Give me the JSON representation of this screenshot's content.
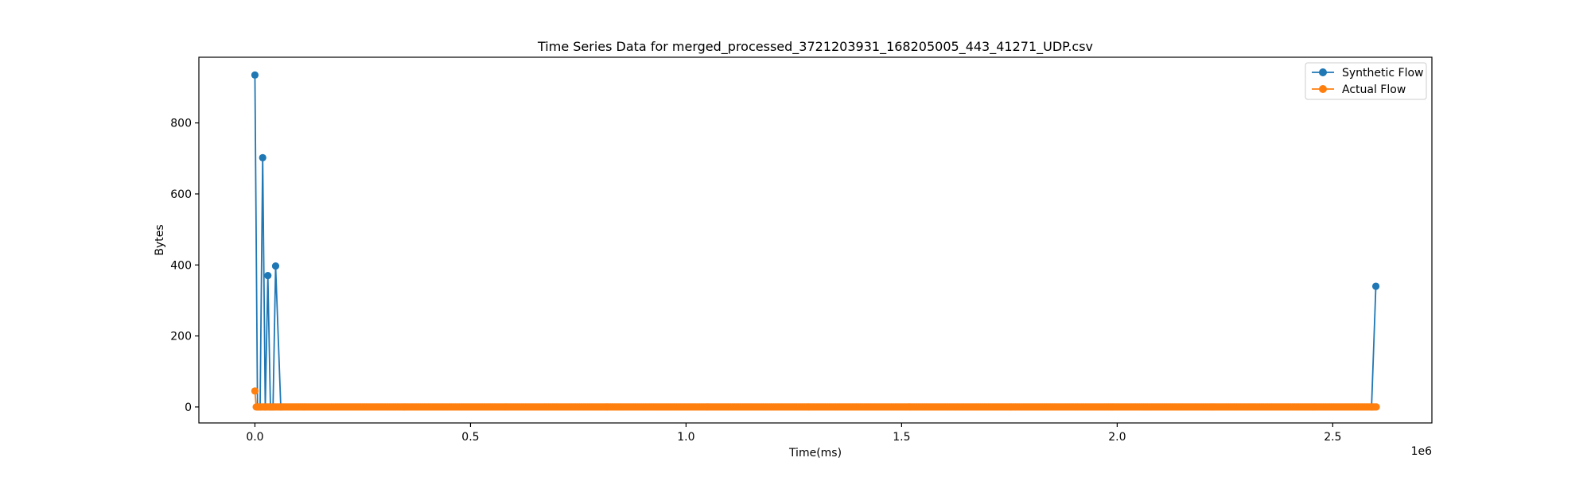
{
  "chart_data": {
    "type": "line",
    "title": "Time Series Data for merged_processed_3721203931_168205005_443_41271_UDP.csv",
    "xlabel": "Time(ms)",
    "ylabel": "Bytes",
    "x_offset_label": "1e6",
    "xlim": [
      -130000,
      2730000
    ],
    "ylim": [
      -45,
      985
    ],
    "x_ticks": [
      0,
      500000,
      1000000,
      1500000,
      2000000,
      2500000
    ],
    "x_tick_labels": [
      "0.0",
      "0.5",
      "1.0",
      "1.5",
      "2.0",
      "2.5"
    ],
    "y_ticks": [
      0,
      200,
      400,
      600,
      800
    ],
    "y_tick_labels": [
      "0",
      "200",
      "400",
      "600",
      "800"
    ],
    "grid": false,
    "legend_position": "top-right",
    "series": [
      {
        "name": "Synthetic Flow",
        "color": "#1f77b4",
        "x": [
          0,
          6000,
          12000,
          18000,
          24000,
          30000,
          36000,
          42000,
          48000,
          60000,
          2590000,
          2600000
        ],
        "y": [
          935,
          0,
          0,
          702,
          0,
          370,
          0,
          0,
          397,
          0,
          0,
          340
        ]
      },
      {
        "name": "Actual Flow",
        "color": "#ff7f0e",
        "x": [
          0,
          3000,
          2602000
        ],
        "y": [
          45,
          0,
          0
        ],
        "dense_zero_range": [
          3000,
          2602000
        ]
      }
    ]
  }
}
